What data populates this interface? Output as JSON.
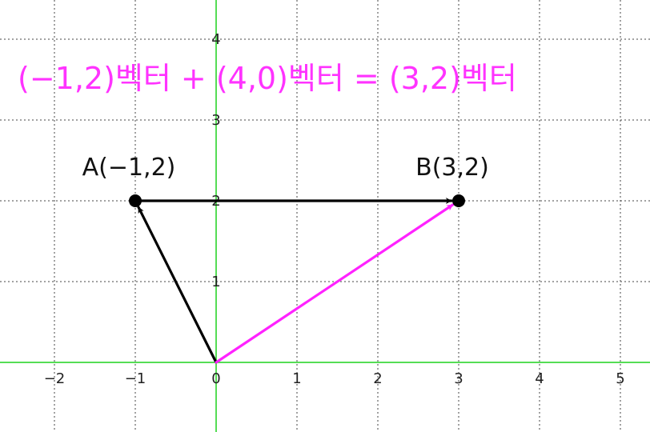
{
  "equation": "(−1,2)벡터 + (4,0)벡터 = (3,2)벡터",
  "colors": {
    "equation": "#ff33ff",
    "axis": "#55dd55",
    "grid": "#444444",
    "vector_black": "#000000",
    "vector_magenta": "#ff22ff"
  },
  "axes": {
    "xlim": [
      -2.6,
      5.3
    ],
    "ylim": [
      -0.9,
      4.5
    ],
    "x_ticks": [
      "−2",
      "−1",
      "0",
      "1",
      "2",
      "3",
      "4",
      "5"
    ],
    "y_ticks": [
      "1",
      "2",
      "3",
      "4"
    ],
    "grid": true
  },
  "points": [
    {
      "id": "A",
      "label": "A(−1,2)",
      "x": -1,
      "y": 2
    },
    {
      "id": "B",
      "label": "B(3,2)",
      "x": 3,
      "y": 2
    }
  ],
  "vectors": [
    {
      "id": "origin-to-a",
      "from": [
        0,
        0
      ],
      "to": [
        -1,
        2
      ],
      "color": "black"
    },
    {
      "id": "a-to-b",
      "from": [
        -1,
        2
      ],
      "to": [
        3,
        2
      ],
      "color": "black"
    },
    {
      "id": "origin-to-b",
      "from": [
        0,
        0
      ],
      "to": [
        3,
        2
      ],
      "color": "magenta"
    }
  ]
}
